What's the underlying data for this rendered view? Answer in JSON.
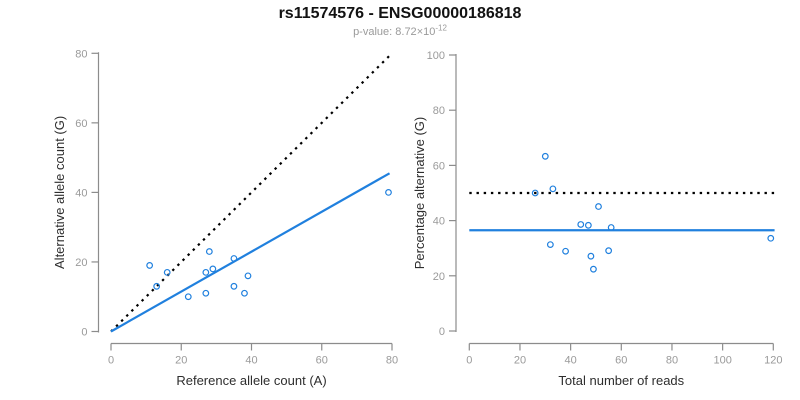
{
  "header": {
    "title": "rs11574576 - ENSG00000186818",
    "pvalue_label": "p-value: ",
    "pvalue_mantissa": "8.72",
    "pvalue_times": "×10",
    "pvalue_exponent": "-12"
  },
  "colors": {
    "accent_blue": "#2080DE",
    "dotted_black": "#000000",
    "axis": "#8c8c8c",
    "tick_label": "#9a9a9a",
    "axis_title": "#2e2e2e",
    "title": "#121212",
    "subtitle": "#9a9a9a"
  },
  "chart_data": [
    {
      "type": "scatter",
      "name": "allele-counts",
      "xlabel": "Reference allele count (A)",
      "ylabel": "Alternative allele count (G)",
      "xlim": [
        0,
        80
      ],
      "ylim": [
        0,
        80
      ],
      "xticks": [
        0,
        20,
        40,
        60,
        80
      ],
      "yticks": [
        0,
        20,
        40,
        60,
        80
      ],
      "grid": false,
      "legend": "none",
      "marker": "open-circle",
      "points": [
        [
          11,
          19
        ],
        [
          13,
          13
        ],
        [
          16,
          17
        ],
        [
          22,
          10
        ],
        [
          27,
          11
        ],
        [
          27,
          17
        ],
        [
          28,
          23
        ],
        [
          29,
          18
        ],
        [
          35,
          13
        ],
        [
          35,
          21
        ],
        [
          38,
          11
        ],
        [
          39,
          16
        ],
        [
          79,
          40
        ]
      ],
      "lines": [
        {
          "name": "identity-line",
          "style": "dotted",
          "color": "#000000",
          "from": [
            0,
            0
          ],
          "to": [
            79.5,
            79.5
          ]
        },
        {
          "name": "regression-line",
          "style": "solid",
          "color": "#2080DE",
          "from": [
            0,
            0
          ],
          "to": [
            79.3,
            45.5
          ],
          "slope": 0.574
        }
      ]
    },
    {
      "type": "scatter",
      "name": "percentage-vs-reads",
      "xlabel": "Total number of reads",
      "ylabel": "Percentage alternative (G)",
      "xlim": [
        0,
        120
      ],
      "ylim": [
        0,
        100
      ],
      "xticks": [
        0,
        20,
        40,
        60,
        80,
        100,
        120
      ],
      "yticks": [
        0,
        20,
        40,
        60,
        80,
        100
      ],
      "grid": false,
      "legend": "none",
      "marker": "open-circle",
      "points": [
        [
          30,
          63.3
        ],
        [
          26,
          50.0
        ],
        [
          33,
          51.5
        ],
        [
          32,
          31.3
        ],
        [
          38,
          28.9
        ],
        [
          44,
          38.6
        ],
        [
          47,
          38.3
        ],
        [
          48,
          27.1
        ],
        [
          49,
          22.4
        ],
        [
          51,
          45.1
        ],
        [
          55,
          29.1
        ],
        [
          56,
          37.5
        ],
        [
          119,
          33.6
        ]
      ],
      "lines": [
        {
          "name": "expected-50pct-line",
          "style": "dotted",
          "color": "#000000",
          "from": [
            0,
            50
          ],
          "to": [
            120.5,
            50
          ],
          "value": 50
        },
        {
          "name": "mean-percentage-line",
          "style": "solid",
          "color": "#2080DE",
          "from": [
            0,
            36.5
          ],
          "to": [
            120.5,
            36.5
          ],
          "value": 36.5
        }
      ]
    }
  ]
}
